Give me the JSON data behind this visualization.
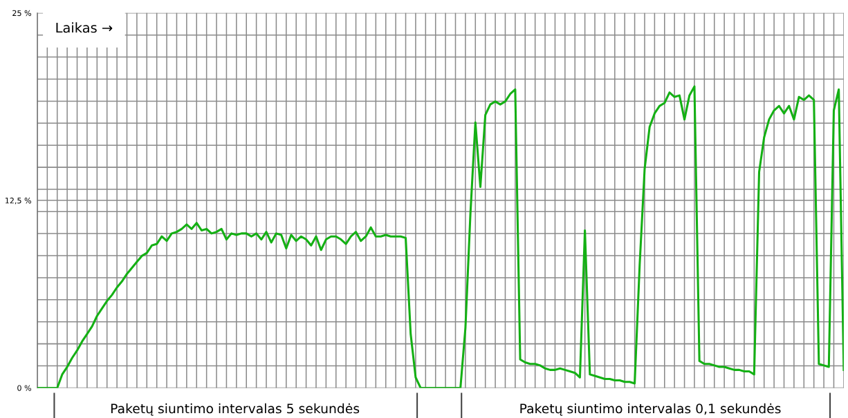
{
  "chart_data": {
    "type": "line",
    "categories": [
      null,
      null,
      null,
      null,
      null,
      null,
      null,
      null,
      null,
      null,
      null,
      null,
      null,
      null,
      null,
      null,
      null,
      null,
      null,
      null,
      null,
      null,
      null,
      null,
      null,
      null,
      null,
      null,
      null,
      null,
      null,
      null,
      null,
      null,
      null,
      null,
      null,
      null,
      null,
      null,
      null,
      null,
      null,
      null,
      null,
      null,
      null,
      null,
      null,
      null,
      null,
      null,
      null,
      null,
      null,
      null,
      null,
      null,
      null,
      null,
      null,
      null,
      null,
      null,
      null,
      null,
      null,
      null,
      null,
      null,
      null,
      null,
      null,
      null,
      null,
      null,
      null,
      null,
      null,
      null,
      null,
      null,
      null,
      null,
      null,
      null,
      null,
      null,
      null,
      null,
      null,
      null,
      null,
      null,
      null,
      null,
      null,
      null,
      null,
      null,
      null,
      null,
      null,
      null,
      null,
      null,
      null,
      null,
      null,
      null,
      null,
      null,
      null,
      null,
      null,
      null,
      null,
      null,
      null,
      null,
      null,
      null,
      null,
      null,
      null,
      null,
      null,
      null,
      null,
      null,
      null,
      null,
      null,
      null,
      null,
      null,
      null,
      null,
      null,
      null,
      null,
      null,
      null,
      null,
      null,
      null,
      null,
      null,
      null,
      null,
      null,
      null,
      null,
      null,
      null,
      null,
      null,
      null,
      null,
      null,
      null,
      null,
      null
    ],
    "series": [
      {
        "color": "#14b014",
        "values": [
          0,
          0,
          0,
          0,
          0,
          0.9,
          1.4,
          2.0,
          2.5,
          3.1,
          3.6,
          4.1,
          4.8,
          5.3,
          5.8,
          6.2,
          6.7,
          7.1,
          7.6,
          8.0,
          8.4,
          8.8,
          9.0,
          9.5,
          9.6,
          10.1,
          9.8,
          10.3,
          10.4,
          10.6,
          10.9,
          10.6,
          11.0,
          10.5,
          10.6,
          10.3,
          10.4,
          10.6,
          9.9,
          10.3,
          10.2,
          10.3,
          10.3,
          10.1,
          10.3,
          9.9,
          10.4,
          9.7,
          10.3,
          10.2,
          9.3,
          10.2,
          9.8,
          10.1,
          9.9,
          9.5,
          10.1,
          9.2,
          9.9,
          10.1,
          10.1,
          9.9,
          9.6,
          10.1,
          10.4,
          9.8,
          10.1,
          10.7,
          10.1,
          10.1,
          10.2,
          10.1,
          10.1,
          10.1,
          10.0,
          3.6,
          0.7,
          0,
          0,
          0,
          0,
          0,
          0,
          0,
          0,
          0,
          4.0,
          11.6,
          17.7,
          13.4,
          18.2,
          18.9,
          19.1,
          18.9,
          19.1,
          19.6,
          19.9,
          1.9,
          1.7,
          1.6,
          1.6,
          1.5,
          1.3,
          1.2,
          1.2,
          1.3,
          1.2,
          1.1,
          1.0,
          0.7,
          10.5,
          0.9,
          0.8,
          0.7,
          0.6,
          0.6,
          0.5,
          0.5,
          0.4,
          0.4,
          0.3,
          8.2,
          14.6,
          17.4,
          18.3,
          18.8,
          19.0,
          19.7,
          19.4,
          19.5,
          17.9,
          19.5,
          20.1,
          1.8,
          1.6,
          1.6,
          1.5,
          1.4,
          1.4,
          1.3,
          1.2,
          1.2,
          1.1,
          1.1,
          0.9,
          14.4,
          16.7,
          17.9,
          18.5,
          18.8,
          18.3,
          18.8,
          17.9,
          19.4,
          19.2,
          19.5,
          19.2,
          1.6,
          1.5,
          1.4,
          18.5,
          19.9,
          1.2
        ]
      }
    ],
    "ylim": [
      0,
      25
    ],
    "yticks": [
      {
        "value": 0,
        "label": "0 %"
      },
      {
        "value": 1.47,
        "label": null
      },
      {
        "value": 2.94,
        "label": null
      },
      {
        "value": 4.41,
        "label": null
      },
      {
        "value": 5.88,
        "label": null
      },
      {
        "value": 7.35,
        "label": null
      },
      {
        "value": 8.82,
        "label": null
      },
      {
        "value": 10.29,
        "label": null
      },
      {
        "value": 11.76,
        "label": null
      },
      {
        "value": 12.5,
        "label": "12,5 %"
      },
      {
        "value": 13.24,
        "label": null
      },
      {
        "value": 14.71,
        "label": null
      },
      {
        "value": 16.18,
        "label": null
      },
      {
        "value": 17.65,
        "label": null
      },
      {
        "value": 19.12,
        "label": null
      },
      {
        "value": 20.59,
        "label": null
      },
      {
        "value": 22.06,
        "label": null
      },
      {
        "value": 23.53,
        "label": null
      },
      {
        "value": 25,
        "label": "25 %"
      }
    ],
    "grid": true,
    "annotations": [
      "Laikas →",
      "Paketų siuntimo intervalas 5 sekundės",
      "Paketų siuntimo intervalas 0,1 sekundės"
    ]
  }
}
